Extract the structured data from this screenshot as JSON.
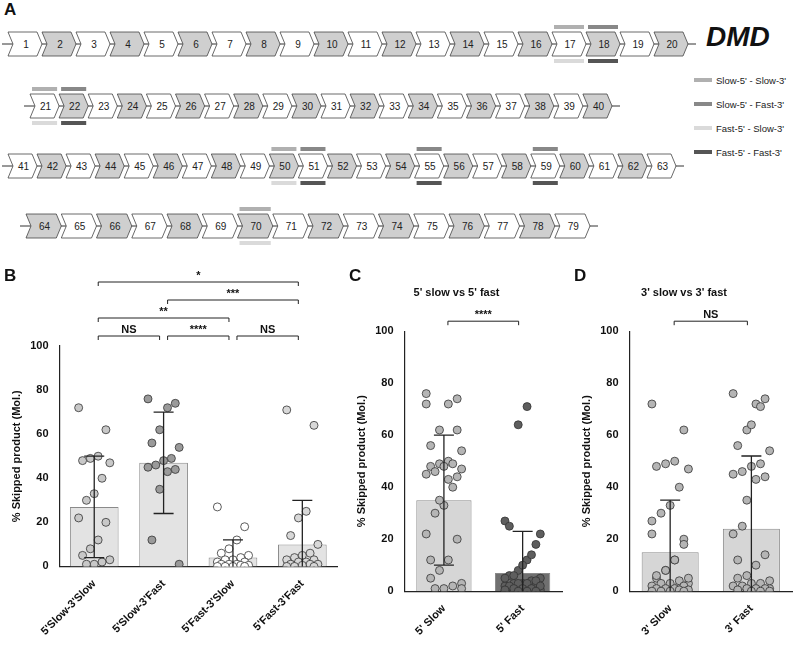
{
  "diagram": {
    "panel": "A",
    "title": "DMD",
    "rows": [
      [
        1,
        2,
        3,
        4,
        5,
        6,
        7,
        8,
        9,
        10,
        11,
        12,
        13,
        14,
        15,
        16,
        17,
        18,
        19,
        20
      ],
      [
        21,
        22,
        23,
        24,
        25,
        26,
        27,
        28,
        29,
        30,
        31,
        32,
        33,
        34,
        35,
        36,
        37,
        38,
        39,
        40
      ],
      [
        41,
        42,
        43,
        44,
        45,
        46,
        47,
        48,
        49,
        50,
        51,
        52,
        53,
        54,
        55,
        56,
        57,
        58,
        59,
        60,
        61,
        62,
        63
      ],
      [
        64,
        65,
        66,
        67,
        68,
        69,
        70,
        71,
        72,
        73,
        74,
        75,
        76,
        77,
        78,
        79
      ]
    ],
    "line_key": [
      {
        "label": "Slow-5' - Slow-3'",
        "color": "#b0b0b0"
      },
      {
        "label": "Slow-5' - Fast-3'",
        "color": "#888888"
      },
      {
        "label": "Fast-5' - Slow-3'",
        "color": "#dadada"
      },
      {
        "label": "Fast-5' - Fast-3'",
        "color": "#555555"
      }
    ],
    "marks": [
      {
        "exon": 17,
        "side": "above",
        "group": "Slow-5' - Slow-3'"
      },
      {
        "exon": 17,
        "side": "below",
        "group": "Fast-5' - Slow-3'"
      },
      {
        "exon": 18,
        "side": "above",
        "group": "Slow-5' - Fast-3'"
      },
      {
        "exon": 18,
        "side": "below",
        "group": "Fast-5' - Fast-3'"
      },
      {
        "exon": 21,
        "side": "above",
        "group": "Slow-5' - Slow-3'"
      },
      {
        "exon": 21,
        "side": "below",
        "group": "Fast-5' - Slow-3'"
      },
      {
        "exon": 22,
        "side": "above",
        "group": "Slow-5' - Fast-3'"
      },
      {
        "exon": 22,
        "side": "below",
        "group": "Fast-5' - Fast-3'"
      },
      {
        "exon": 50,
        "side": "above",
        "group": "Slow-5' - Slow-3'"
      },
      {
        "exon": 50,
        "side": "below",
        "group": "Fast-5' - Slow-3'"
      },
      {
        "exon": 51,
        "side": "above",
        "group": "Slow-5' - Fast-3'"
      },
      {
        "exon": 51,
        "side": "below",
        "group": "Fast-5' - Fast-3'"
      },
      {
        "exon": 55,
        "side": "above",
        "group": "Slow-5' - Fast-3'"
      },
      {
        "exon": 55,
        "side": "below",
        "group": "Fast-5' - Fast-3'"
      },
      {
        "exon": 59,
        "side": "above",
        "group": "Slow-5' - Fast-3'"
      },
      {
        "exon": 59,
        "side": "below",
        "group": "Fast-5' - Fast-3'"
      },
      {
        "exon": 70,
        "side": "above",
        "group": "Slow-5' - Slow-3'"
      },
      {
        "exon": 70,
        "side": "below",
        "group": "Fast-5' - Slow-3'"
      }
    ]
  },
  "chart_data": [
    {
      "panel": "B",
      "type": "bar",
      "y_label": "% Skipped product (Mol.)",
      "categories": [
        "5'Slow-3'Slow",
        "5'Slow-3'Fast",
        "5'Fast-3'Slow",
        "5'Fast-3'Fast"
      ],
      "values": [
        27,
        47,
        4,
        10
      ],
      "error": [
        23,
        23,
        8,
        20
      ],
      "colors": [
        "#e3e3e3",
        "#e3e3e3",
        "#e3e3e3",
        "#e3e3e3"
      ],
      "points": [
        [
          72,
          62,
          50,
          49,
          48,
          47,
          40,
          33,
          30,
          22,
          20,
          12,
          8,
          5,
          3,
          2,
          1,
          1
        ],
        [
          76,
          74,
          72,
          62,
          56,
          54,
          49,
          48,
          46,
          45,
          44,
          43,
          35,
          12,
          1
        ],
        [
          27,
          18,
          12,
          8,
          6,
          5,
          4,
          3,
          3,
          2,
          2,
          1,
          1,
          1,
          0.5,
          0.5,
          0,
          0,
          0,
          0
        ],
        [
          71,
          64,
          25,
          22,
          14,
          10,
          6,
          5,
          4,
          3,
          3,
          2,
          2,
          1,
          1,
          1,
          0.5,
          0,
          0,
          0
        ]
      ],
      "ylim": [
        0,
        100
      ],
      "yticks": [
        0,
        20,
        40,
        60,
        80,
        100
      ],
      "grid": false,
      "annotations": [
        {
          "from": "5'Slow-3'Slow",
          "to": "5'Slow-3'Fast",
          "label": "NS"
        },
        {
          "from": "5'Slow-3'Slow",
          "to": "5'Fast-3'Fast",
          "label": "*"
        },
        {
          "from": "5'Slow-3'Slow",
          "to": "5'Fast-3'Slow",
          "label": "**"
        },
        {
          "from": "5'Slow-3'Fast",
          "to": "5'Fast-3'Fast",
          "label": "***"
        },
        {
          "from": "5'Slow-3'Fast",
          "to": "5'Fast-3'Slow",
          "label": "****"
        },
        {
          "from": "5'Fast-3'Slow",
          "to": "5'Fast-3'Fast",
          "label": "NS"
        }
      ]
    },
    {
      "panel": "C",
      "type": "bar",
      "title": "5' slow vs 5' fast",
      "y_label": "% Skipped product (Mol.)",
      "categories": [
        "5' Slow",
        "5' Fast"
      ],
      "values": [
        35,
        7
      ],
      "error": [
        25,
        16
      ],
      "colors": [
        "#d6d6d6",
        "#707070"
      ],
      "points": [
        [
          72,
          62,
          50,
          49,
          48,
          47,
          40,
          33,
          30,
          22,
          20,
          12,
          8,
          5,
          3,
          2,
          1,
          1,
          76,
          74,
          72,
          62,
          56,
          54,
          49,
          48,
          46,
          45,
          44,
          43,
          35,
          12,
          1
        ],
        [
          27,
          18,
          12,
          8,
          6,
          5,
          4,
          3,
          3,
          2,
          2,
          1,
          1,
          1,
          0.5,
          0.5,
          0,
          0,
          0,
          0,
          71,
          64,
          25,
          22,
          14,
          10,
          6,
          5,
          4,
          3,
          3,
          2,
          2,
          1,
          1,
          1,
          0.5,
          0,
          0,
          0
        ]
      ],
      "ylim": [
        0,
        100
      ],
      "yticks": [
        0,
        20,
        40,
        60,
        80,
        100
      ],
      "grid": false,
      "annotations": [
        {
          "from": "5' Slow",
          "to": "5' Fast",
          "label": "****"
        }
      ]
    },
    {
      "panel": "D",
      "type": "bar",
      "title": "3' slow vs 3' fast",
      "y_label": "% Skipped product (Mol.)",
      "categories": [
        "3' Slow",
        "3' Fast"
      ],
      "values": [
        15,
        24
      ],
      "error": [
        20,
        28
      ],
      "colors": [
        "#d6d6d6",
        "#d6d6d6"
      ],
      "points": [
        [
          72,
          62,
          50,
          49,
          48,
          47,
          40,
          33,
          30,
          22,
          20,
          12,
          8,
          5,
          3,
          2,
          1,
          1,
          27,
          18,
          12,
          8,
          6,
          5,
          4,
          3,
          3,
          2,
          2,
          1,
          1,
          1,
          0.5,
          0.5,
          0,
          0,
          0,
          0
        ],
        [
          76,
          74,
          72,
          62,
          56,
          54,
          49,
          48,
          46,
          45,
          44,
          43,
          35,
          12,
          1,
          71,
          64,
          25,
          22,
          14,
          10,
          6,
          5,
          4,
          3,
          3,
          2,
          2,
          1,
          1,
          1,
          0.5,
          0,
          0,
          0
        ]
      ],
      "ylim": [
        0,
        100
      ],
      "yticks": [
        0,
        20,
        40,
        60,
        80,
        100
      ],
      "grid": false,
      "annotations": [
        {
          "from": "3' Slow",
          "to": "3' Fast",
          "label": "NS"
        }
      ]
    }
  ]
}
